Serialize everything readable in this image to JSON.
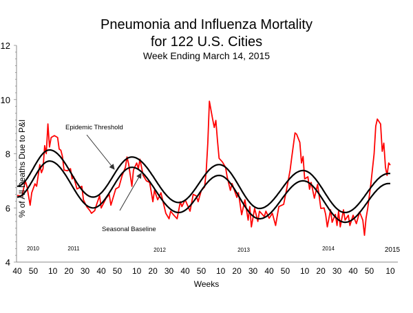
{
  "chart_data": {
    "type": "line",
    "title": "Pneumonia and Influenza Mortality",
    "title_line2": "for 122 U.S. Cities",
    "subtitle": "Week Ending March 14, 2015",
    "xlabel": "Weeks",
    "ylabel": "% of All Deaths Due to P&I",
    "ylim": [
      4,
      12
    ],
    "y_ticks": [
      "12",
      "10",
      "8",
      "6",
      "4"
    ],
    "x_range": [
      "2010-40",
      "2015-10"
    ],
    "x_ticks": [
      {
        "label": "40",
        "week": "2010-40"
      },
      {
        "label": "50",
        "week": "2010-50"
      },
      {
        "label": "10",
        "week": "2011-10"
      },
      {
        "label": "20",
        "week": "2011-20"
      },
      {
        "label": "30",
        "week": "2011-30"
      },
      {
        "label": "40",
        "week": "2011-40"
      },
      {
        "label": "50",
        "week": "2011-50"
      },
      {
        "label": "10",
        "week": "2012-10"
      },
      {
        "label": "20",
        "week": "2012-20"
      },
      {
        "label": "30",
        "week": "2012-30"
      },
      {
        "label": "40",
        "week": "2012-40"
      },
      {
        "label": "50",
        "week": "2012-50"
      },
      {
        "label": "10",
        "week": "2013-10"
      },
      {
        "label": "20",
        "week": "2013-20"
      },
      {
        "label": "30",
        "week": "2013-30"
      },
      {
        "label": "40",
        "week": "2013-40"
      },
      {
        "label": "50",
        "week": "2013-50"
      },
      {
        "label": "10",
        "week": "2014-10"
      },
      {
        "label": "20",
        "week": "2014-20"
      },
      {
        "label": "30",
        "week": "2014-30"
      },
      {
        "label": "40",
        "week": "2014-40"
      },
      {
        "label": "50",
        "week": "2014-50"
      },
      {
        "label": "10",
        "week": "2015-10"
      }
    ],
    "year_labels": [
      "2010",
      "2011",
      "2012",
      "2013",
      "2014",
      "2015"
    ],
    "grid": false,
    "annotations": [
      "Epidemic Threshold",
      "Seasonal Baseline"
    ],
    "colors": {
      "observed": "#ff0000",
      "threshold": "#000000",
      "baseline": "#000000"
    },
    "series": [
      {
        "key": "observed",
        "points": [
          [
            "2010-40",
            6.46
          ],
          [
            "2010-43",
            6.44
          ],
          [
            "2010-45",
            7.0
          ],
          [
            "2010-46",
            6.8
          ],
          [
            "2010-48",
            6.1
          ],
          [
            "2010-49",
            6.56
          ],
          [
            "2010-51",
            6.89
          ],
          [
            "2010-52",
            6.8
          ],
          [
            "2011-02",
            7.6
          ],
          [
            "2011-03",
            7.3
          ],
          [
            "2011-04",
            7.45
          ],
          [
            "2011-05",
            8.3
          ],
          [
            "2011-06",
            8.0
          ],
          [
            "2011-07",
            9.1
          ],
          [
            "2011-08",
            8.25
          ],
          [
            "2011-09",
            8.6
          ],
          [
            "2011-11",
            8.67
          ],
          [
            "2011-13",
            8.6
          ],
          [
            "2011-14",
            8.17
          ],
          [
            "2011-15",
            8.13
          ],
          [
            "2011-16",
            7.9
          ],
          [
            "2011-17",
            7.4
          ],
          [
            "2011-19",
            7.37
          ],
          [
            "2011-21",
            7.45
          ],
          [
            "2011-22",
            7.07
          ],
          [
            "2011-23",
            7.15
          ],
          [
            "2011-25",
            6.7
          ],
          [
            "2011-28",
            6.8
          ],
          [
            "2011-29",
            6.3
          ],
          [
            "2011-31",
            6.05
          ],
          [
            "2011-33",
            5.9
          ],
          [
            "2011-34",
            5.8
          ],
          [
            "2011-36",
            5.9
          ],
          [
            "2011-37",
            6.1
          ],
          [
            "2011-39",
            6.45
          ],
          [
            "2011-40",
            6.0
          ],
          [
            "2011-43",
            6.35
          ],
          [
            "2011-45",
            6.5
          ],
          [
            "2011-46",
            6.1
          ],
          [
            "2011-49",
            6.7
          ],
          [
            "2011-51",
            6.77
          ],
          [
            "2012-01",
            7.2
          ],
          [
            "2012-03",
            7.5
          ],
          [
            "2012-04",
            7.88
          ],
          [
            "2012-05",
            7.62
          ],
          [
            "2012-07",
            6.8
          ],
          [
            "2012-08",
            7.4
          ],
          [
            "2012-10",
            7.66
          ],
          [
            "2012-11",
            7.45
          ],
          [
            "2012-12",
            7.8
          ],
          [
            "2012-14",
            7.2
          ],
          [
            "2012-16",
            7.0
          ],
          [
            "2012-18",
            6.94
          ],
          [
            "2012-20",
            6.23
          ],
          [
            "2012-21",
            6.65
          ],
          [
            "2012-23",
            6.3
          ],
          [
            "2012-25",
            6.56
          ],
          [
            "2012-26",
            6.3
          ],
          [
            "2012-28",
            5.8
          ],
          [
            "2012-30",
            5.6
          ],
          [
            "2012-31",
            5.88
          ],
          [
            "2012-33",
            5.73
          ],
          [
            "2012-35",
            5.6
          ],
          [
            "2012-37",
            6.23
          ],
          [
            "2012-38",
            6.05
          ],
          [
            "2012-40",
            6.3
          ],
          [
            "2012-43",
            5.88
          ],
          [
            "2012-45",
            6.5
          ],
          [
            "2012-47",
            6.44
          ],
          [
            "2012-48",
            6.23
          ],
          [
            "2012-50",
            6.65
          ],
          [
            "2012-52",
            6.77
          ],
          [
            "2013-01",
            7.32
          ],
          [
            "2013-02",
            8.4
          ],
          [
            "2013-03",
            9.94
          ],
          [
            "2013-05",
            9.28
          ],
          [
            "2013-06",
            8.97
          ],
          [
            "2013-07",
            9.23
          ],
          [
            "2013-08",
            8.5
          ],
          [
            "2013-09",
            7.83
          ],
          [
            "2013-11",
            7.7
          ],
          [
            "2013-13",
            7.5
          ],
          [
            "2013-14",
            7.15
          ],
          [
            "2013-16",
            6.65
          ],
          [
            "2013-17",
            6.9
          ],
          [
            "2013-20",
            6.39
          ],
          [
            "2013-21",
            6.56
          ],
          [
            "2013-23",
            5.75
          ],
          [
            "2013-25",
            6.3
          ],
          [
            "2013-27",
            5.55
          ],
          [
            "2013-28",
            6.05
          ],
          [
            "2013-29",
            5.3
          ],
          [
            "2013-31",
            5.98
          ],
          [
            "2013-33",
            5.5
          ],
          [
            "2013-34",
            5.88
          ],
          [
            "2013-37",
            5.68
          ],
          [
            "2013-38",
            5.88
          ],
          [
            "2013-40",
            5.62
          ],
          [
            "2013-42",
            5.8
          ],
          [
            "2013-44",
            5.35
          ],
          [
            "2013-46",
            6.05
          ],
          [
            "2013-49",
            6.13
          ],
          [
            "2013-51",
            6.74
          ],
          [
            "2014-01",
            7.4
          ],
          [
            "2014-02",
            7.88
          ],
          [
            "2014-04",
            8.77
          ],
          [
            "2014-05",
            8.72
          ],
          [
            "2014-07",
            8.42
          ],
          [
            "2014-08",
            7.66
          ],
          [
            "2014-09",
            7.9
          ],
          [
            "2014-10",
            7.07
          ],
          [
            "2014-12",
            7.15
          ],
          [
            "2014-13",
            6.69
          ],
          [
            "2014-14",
            6.94
          ],
          [
            "2014-16",
            6.36
          ],
          [
            "2014-18",
            6.87
          ],
          [
            "2014-20",
            5.98
          ],
          [
            "2014-22",
            6.0
          ],
          [
            "2014-23",
            5.76
          ],
          [
            "2014-24",
            5.3
          ],
          [
            "2014-26",
            5.93
          ],
          [
            "2014-27",
            5.47
          ],
          [
            "2014-29",
            5.76
          ],
          [
            "2014-30",
            5.35
          ],
          [
            "2014-31",
            5.88
          ],
          [
            "2014-32",
            5.3
          ],
          [
            "2014-34",
            5.93
          ],
          [
            "2014-35",
            5.55
          ],
          [
            "2014-37",
            5.73
          ],
          [
            "2014-38",
            5.35
          ],
          [
            "2014-40",
            5.73
          ],
          [
            "2014-42",
            5.42
          ],
          [
            "2014-44",
            5.85
          ],
          [
            "2014-46",
            5.55
          ],
          [
            "2014-47",
            4.99
          ],
          [
            "2014-48",
            5.62
          ],
          [
            "2014-49",
            5.98
          ],
          [
            "2014-51",
            6.89
          ],
          [
            "2014-53",
            8.0
          ],
          [
            "2015-01",
            9.02
          ],
          [
            "2015-02",
            9.28
          ],
          [
            "2015-04",
            9.1
          ],
          [
            "2015-05",
            8.09
          ],
          [
            "2015-06",
            8.39
          ],
          [
            "2015-07",
            7.5
          ],
          [
            "2015-08",
            7.2
          ],
          [
            "2015-09",
            7.66
          ],
          [
            "2015-10",
            7.58
          ]
        ]
      },
      {
        "key": "threshold",
        "name": "Epidemic Threshold",
        "points": [
          [
            "2010-40",
            6.8
          ],
          [
            "2011-08",
            8.14
          ],
          [
            "2011-35",
            6.4
          ],
          [
            "2012-07",
            7.88
          ],
          [
            "2012-36",
            6.2
          ],
          [
            "2013-09",
            7.6
          ],
          [
            "2013-34",
            5.98
          ],
          [
            "2014-09",
            7.38
          ],
          [
            "2014-35",
            5.83
          ],
          [
            "2015-09",
            7.27
          ],
          [
            "2015-10",
            7.27
          ]
        ]
      },
      {
        "key": "baseline",
        "name": "Seasonal Baseline",
        "points": [
          [
            "2010-40",
            6.4
          ],
          [
            "2011-08",
            7.73
          ],
          [
            "2011-35",
            6.0
          ],
          [
            "2012-07",
            7.5
          ],
          [
            "2012-36",
            5.83
          ],
          [
            "2013-09",
            7.2
          ],
          [
            "2013-34",
            5.6
          ],
          [
            "2014-09",
            7.0
          ],
          [
            "2014-35",
            5.47
          ],
          [
            "2015-09",
            6.9
          ],
          [
            "2015-10",
            6.9
          ]
        ]
      }
    ]
  }
}
